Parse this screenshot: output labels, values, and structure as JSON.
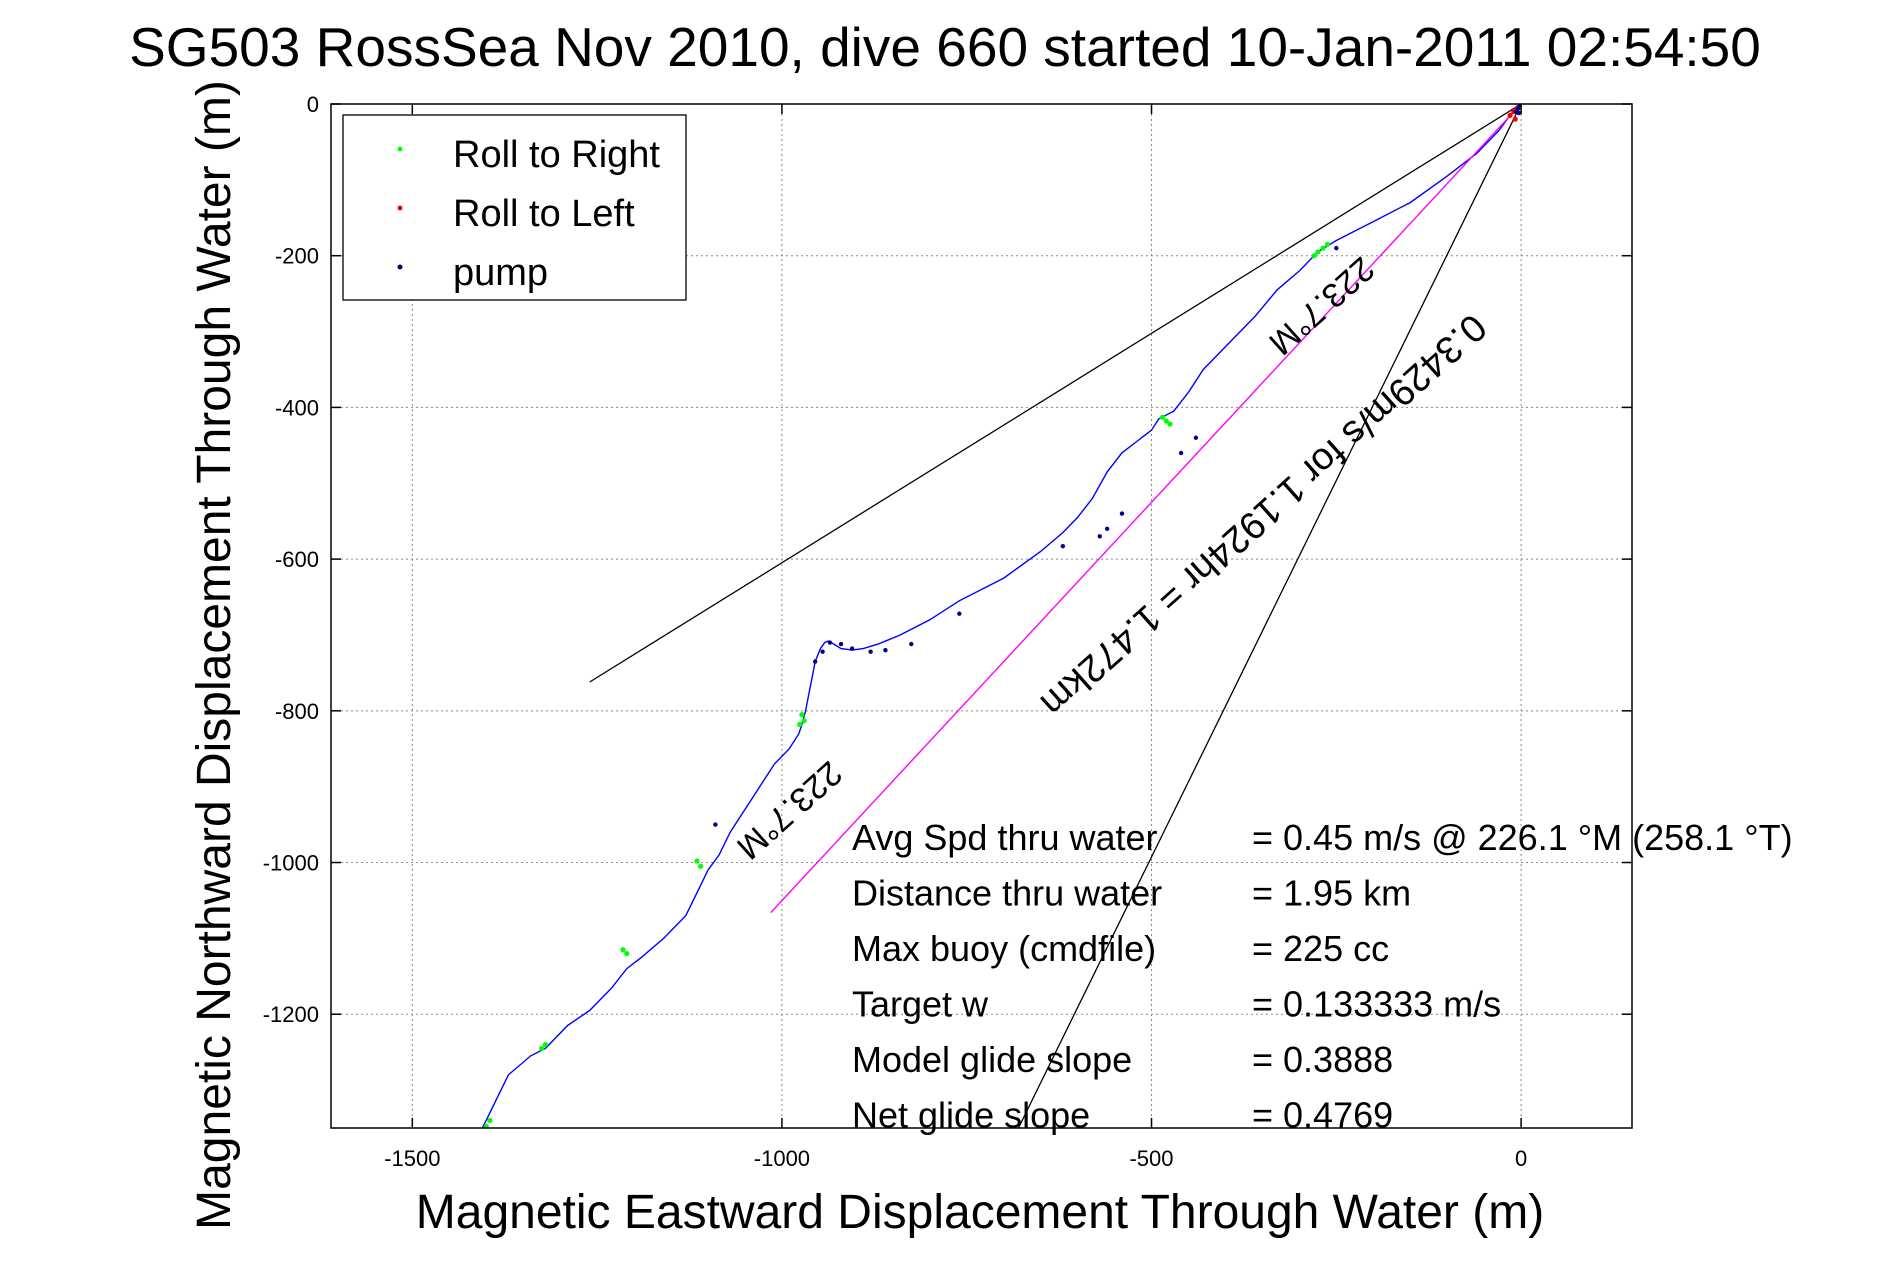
{
  "chart_data": {
    "type": "line",
    "title": "SG503 RossSea Nov 2010, dive 660 started 10-Jan-2011 02:54:50",
    "xlabel": "Magnetic Eastward Displacement Through Water (m)",
    "ylabel": "Magnetic Northward Displacement Through Water (m)",
    "xlim": [
      -1610,
      150
    ],
    "ylim": [
      -1350,
      0
    ],
    "xticks": [
      -1500,
      -1000,
      -500,
      0
    ],
    "yticks": [
      0,
      -200,
      -400,
      -600,
      -800,
      -1000,
      -1200
    ],
    "grid": true,
    "legend_position": "top-left",
    "legend": [
      {
        "label": "Roll to Right",
        "color": "#00ff00"
      },
      {
        "label": "Roll to Left",
        "color": "#ff0000"
      },
      {
        "label": "pump",
        "color": "#00008b"
      }
    ],
    "series": [
      {
        "name": "",
        "color": "#0000ff",
        "x": [
          0,
          -5,
          -15,
          -30,
          -60,
          -100,
          -150,
          -200,
          -250,
          -275,
          -300,
          -330,
          -360,
          -400,
          -430,
          -450,
          -470,
          -490,
          -500,
          -520,
          -540,
          -560,
          -580,
          -600,
          -620,
          -650,
          -700,
          -760,
          -800,
          -840,
          -870,
          -890,
          -905,
          -920,
          -930,
          -937,
          -942,
          -948,
          -955,
          -960,
          -965,
          -968,
          -971,
          -973,
          -977,
          -990,
          -1010,
          -1030,
          -1050,
          -1070,
          -1085,
          -1100,
          -1115,
          -1130,
          -1160,
          -1190,
          -1210,
          -1230,
          -1260,
          -1290,
          -1320,
          -1340,
          -1370,
          -1390,
          -1400,
          -1408
        ],
        "y": [
          0,
          -5,
          -15,
          -35,
          -65,
          -95,
          -130,
          -155,
          -180,
          -195,
          -220,
          -245,
          -280,
          -320,
          -350,
          -380,
          -405,
          -415,
          -430,
          -445,
          -460,
          -485,
          -520,
          -545,
          -565,
          -590,
          -625,
          -655,
          -680,
          -700,
          -712,
          -718,
          -720,
          -718,
          -712,
          -708,
          -710,
          -718,
          -735,
          -760,
          -785,
          -800,
          -810,
          -818,
          -830,
          -850,
          -870,
          -900,
          -930,
          -960,
          -990,
          -1010,
          -1040,
          -1070,
          -1100,
          -1125,
          -1140,
          -1165,
          -1195,
          -1215,
          -1245,
          -1255,
          -1280,
          -1320,
          -1340,
          -1355
        ]
      },
      {
        "name": "",
        "color": "#ff00ff",
        "x": [
          0,
          -1015
        ],
        "y": [
          0,
          -1066
        ]
      }
    ],
    "markers": {
      "roll_right": {
        "color": "#00ff00",
        "x": [
          -280,
          -275,
          -268,
          -262,
          -485,
          -480,
          -475,
          -970,
          -973,
          -976,
          -1110,
          -1115,
          -1210,
          -1215,
          -1325,
          -1320,
          -1395,
          -1400
        ],
        "y": [
          -200,
          -195,
          -190,
          -185,
          -413,
          -418,
          -422,
          -813,
          -805,
          -818,
          -1005,
          -998,
          -1120,
          -1115,
          -1245,
          -1240,
          -1340,
          -1348
        ]
      },
      "roll_left": {
        "color": "#ff0000",
        "x": [
          -5,
          -10,
          -15,
          -8
        ],
        "y": [
          -5,
          -10,
          -15,
          -20
        ]
      },
      "pump": {
        "color": "#00008b",
        "x": [
          -2,
          -4,
          -7,
          -3,
          -250,
          -440,
          -460,
          -540,
          -560,
          -570,
          -620,
          -760,
          -825,
          -860,
          -880,
          -905,
          -920,
          -935,
          -945,
          -955,
          -1090
        ],
        "y": [
          -2,
          -6,
          -10,
          -12,
          -190,
          -440,
          -460,
          -540,
          -560,
          -570,
          -583,
          -672,
          -712,
          -720,
          -722,
          -718,
          -712,
          -710,
          -722,
          -735,
          -950
        ]
      }
    },
    "reference_lines": [
      {
        "x": [
          0,
          -1260
        ],
        "y": [
          0,
          -762
        ],
        "color": "#000000"
      },
      {
        "x": [
          0,
          -680
        ],
        "y": [
          0,
          -1350
        ],
        "color": "#000000"
      }
    ],
    "annotations": [
      {
        "text": "223.7°M",
        "x": -1000,
        "y": -920,
        "rotation": 138.2
      },
      {
        "text": "223.7°M",
        "x": -280,
        "y": -255,
        "rotation": 138.2
      },
      {
        "text": "0.3429m/s for 1.1924hr = 1.472km",
        "x": -360,
        "y": -530,
        "rotation": 138.2
      }
    ],
    "summary": [
      {
        "label": "Avg Spd thru water",
        "value": "=  0.45 m/s @ 226.1 °M (258.1 °T)"
      },
      {
        "label": "Distance thru water",
        "value": "=  1.95 km"
      },
      {
        "label": "Max buoy (cmdfile)",
        "value": "= 225 cc"
      },
      {
        "label": "Target w",
        "value": "= 0.133333 m/s"
      },
      {
        "label": "Model glide slope",
        "value": "= 0.3888"
      },
      {
        "label": "Net glide slope",
        "value": "= 0.4769"
      }
    ]
  }
}
